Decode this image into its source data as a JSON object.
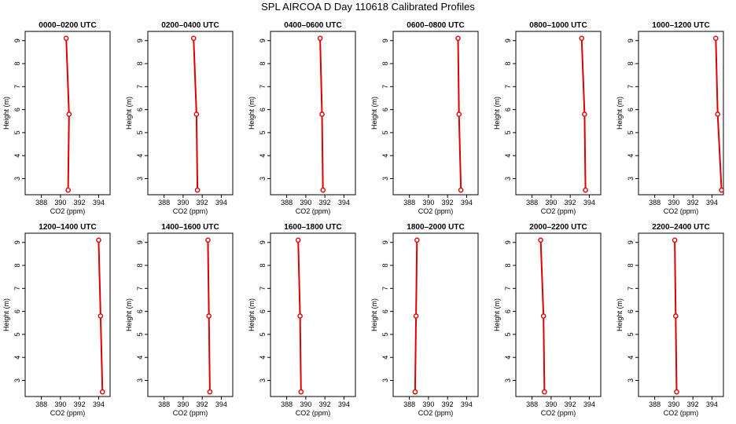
{
  "title": "SPL AIRCOA D  Day 110618  Calibrated Profiles",
  "colors": {
    "series": "#dd0000",
    "axis": "#000000",
    "background": "#ffffff"
  },
  "chart_data": [
    {
      "type": "line",
      "title": "0000–0200 UTC",
      "xlabel": "CO2 (ppm)",
      "ylabel": "Height (m)",
      "xlim": [
        386.3,
        395.2
      ],
      "ylim": [
        2.3,
        9.4
      ],
      "xticks": [
        388,
        390,
        392,
        394
      ],
      "yticks": [
        3,
        4,
        5,
        6,
        7,
        8,
        9
      ],
      "grid": false,
      "x": [
        390.6,
        390.9,
        390.8
      ],
      "y": [
        9.1,
        5.8,
        2.5
      ]
    },
    {
      "type": "line",
      "title": "0200–0400 UTC",
      "xlabel": "CO2 (ppm)",
      "ylabel": "Height (m)",
      "xlim": [
        386.3,
        395.2
      ],
      "ylim": [
        2.3,
        9.4
      ],
      "xticks": [
        388,
        390,
        392,
        394
      ],
      "yticks": [
        3,
        4,
        5,
        6,
        7,
        8,
        9
      ],
      "grid": false,
      "x": [
        391.1,
        391.4,
        391.5
      ],
      "y": [
        9.1,
        5.8,
        2.5
      ]
    },
    {
      "type": "line",
      "title": "0400–0600 UTC",
      "xlabel": "CO2 (ppm)",
      "ylabel": "Height (m)",
      "xlim": [
        386.3,
        395.2
      ],
      "ylim": [
        2.3,
        9.4
      ],
      "xticks": [
        388,
        390,
        392,
        394
      ],
      "yticks": [
        3,
        4,
        5,
        6,
        7,
        8,
        9
      ],
      "grid": false,
      "x": [
        391.5,
        391.7,
        391.8
      ],
      "y": [
        9.1,
        5.8,
        2.5
      ]
    },
    {
      "type": "line",
      "title": "0600–0800 UTC",
      "xlabel": "CO2 (ppm)",
      "ylabel": "Height (m)",
      "xlim": [
        386.3,
        395.2
      ],
      "ylim": [
        2.3,
        9.4
      ],
      "xticks": [
        388,
        390,
        392,
        394
      ],
      "yticks": [
        3,
        4,
        5,
        6,
        7,
        8,
        9
      ],
      "grid": false,
      "x": [
        393.1,
        393.2,
        393.4
      ],
      "y": [
        9.1,
        5.8,
        2.5
      ]
    },
    {
      "type": "line",
      "title": "0800–1000 UTC",
      "xlabel": "CO2 (ppm)",
      "ylabel": "Height (m)",
      "xlim": [
        386.3,
        395.2
      ],
      "ylim": [
        2.3,
        9.4
      ],
      "xticks": [
        388,
        390,
        392,
        394
      ],
      "yticks": [
        3,
        4,
        5,
        6,
        7,
        8,
        9
      ],
      "grid": false,
      "x": [
        393.2,
        393.5,
        393.6
      ],
      "y": [
        9.1,
        5.8,
        2.5
      ]
    },
    {
      "type": "line",
      "title": "1000–1200 UTC",
      "xlabel": "CO2 (ppm)",
      "ylabel": "Height (m)",
      "xlim": [
        386.3,
        395.2
      ],
      "ylim": [
        2.3,
        9.4
      ],
      "xticks": [
        388,
        390,
        392,
        394
      ],
      "yticks": [
        3,
        4,
        5,
        6,
        7,
        8,
        9
      ],
      "grid": false,
      "x": [
        394.4,
        394.6,
        395.0
      ],
      "y": [
        9.1,
        5.8,
        2.5
      ]
    },
    {
      "type": "line",
      "title": "1200–1400 UTC",
      "xlabel": "CO2 (ppm)",
      "ylabel": "Height (m)",
      "xlim": [
        386.3,
        395.2
      ],
      "ylim": [
        2.3,
        9.4
      ],
      "xticks": [
        388,
        390,
        392,
        394
      ],
      "yticks": [
        3,
        4,
        5,
        6,
        7,
        8,
        9
      ],
      "grid": false,
      "x": [
        394.0,
        394.2,
        394.4
      ],
      "y": [
        9.1,
        5.8,
        2.5
      ]
    },
    {
      "type": "line",
      "title": "1400–1600 UTC",
      "xlabel": "CO2 (ppm)",
      "ylabel": "Height (m)",
      "xlim": [
        386.3,
        395.2
      ],
      "ylim": [
        2.3,
        9.4
      ],
      "xticks": [
        388,
        390,
        392,
        394
      ],
      "yticks": [
        3,
        4,
        5,
        6,
        7,
        8,
        9
      ],
      "grid": false,
      "x": [
        392.6,
        392.7,
        392.8
      ],
      "y": [
        9.1,
        5.8,
        2.5
      ]
    },
    {
      "type": "line",
      "title": "1600–1800 UTC",
      "xlabel": "CO2 (ppm)",
      "ylabel": "Height (m)",
      "xlim": [
        386.3,
        395.2
      ],
      "ylim": [
        2.3,
        9.4
      ],
      "xticks": [
        388,
        390,
        392,
        394
      ],
      "yticks": [
        3,
        4,
        5,
        6,
        7,
        8,
        9
      ],
      "grid": false,
      "x": [
        389.2,
        389.4,
        389.5
      ],
      "y": [
        9.1,
        5.8,
        2.5
      ]
    },
    {
      "type": "line",
      "title": "1800–2000 UTC",
      "xlabel": "CO2 (ppm)",
      "ylabel": "Height (m)",
      "xlim": [
        386.3,
        395.2
      ],
      "ylim": [
        2.3,
        9.4
      ],
      "xticks": [
        388,
        390,
        392,
        394
      ],
      "yticks": [
        3,
        4,
        5,
        6,
        7,
        8,
        9
      ],
      "grid": false,
      "x": [
        388.8,
        388.7,
        388.6
      ],
      "y": [
        9.1,
        5.8,
        2.5
      ]
    },
    {
      "type": "line",
      "title": "2000–2200 UTC",
      "xlabel": "CO2 (ppm)",
      "ylabel": "Height (m)",
      "xlim": [
        386.3,
        395.2
      ],
      "ylim": [
        2.3,
        9.4
      ],
      "xticks": [
        388,
        390,
        392,
        394
      ],
      "yticks": [
        3,
        4,
        5,
        6,
        7,
        8,
        9
      ],
      "grid": false,
      "x": [
        388.9,
        389.2,
        389.3
      ],
      "y": [
        9.1,
        5.8,
        2.5
      ]
    },
    {
      "type": "line",
      "title": "2200–2400 UTC",
      "xlabel": "CO2 (ppm)",
      "ylabel": "Height (m)",
      "xlim": [
        386.3,
        395.2
      ],
      "ylim": [
        2.3,
        9.4
      ],
      "xticks": [
        388,
        390,
        392,
        394
      ],
      "yticks": [
        3,
        4,
        5,
        6,
        7,
        8,
        9
      ],
      "grid": false,
      "x": [
        390.1,
        390.2,
        390.3
      ],
      "y": [
        9.1,
        5.8,
        2.5
      ]
    }
  ]
}
